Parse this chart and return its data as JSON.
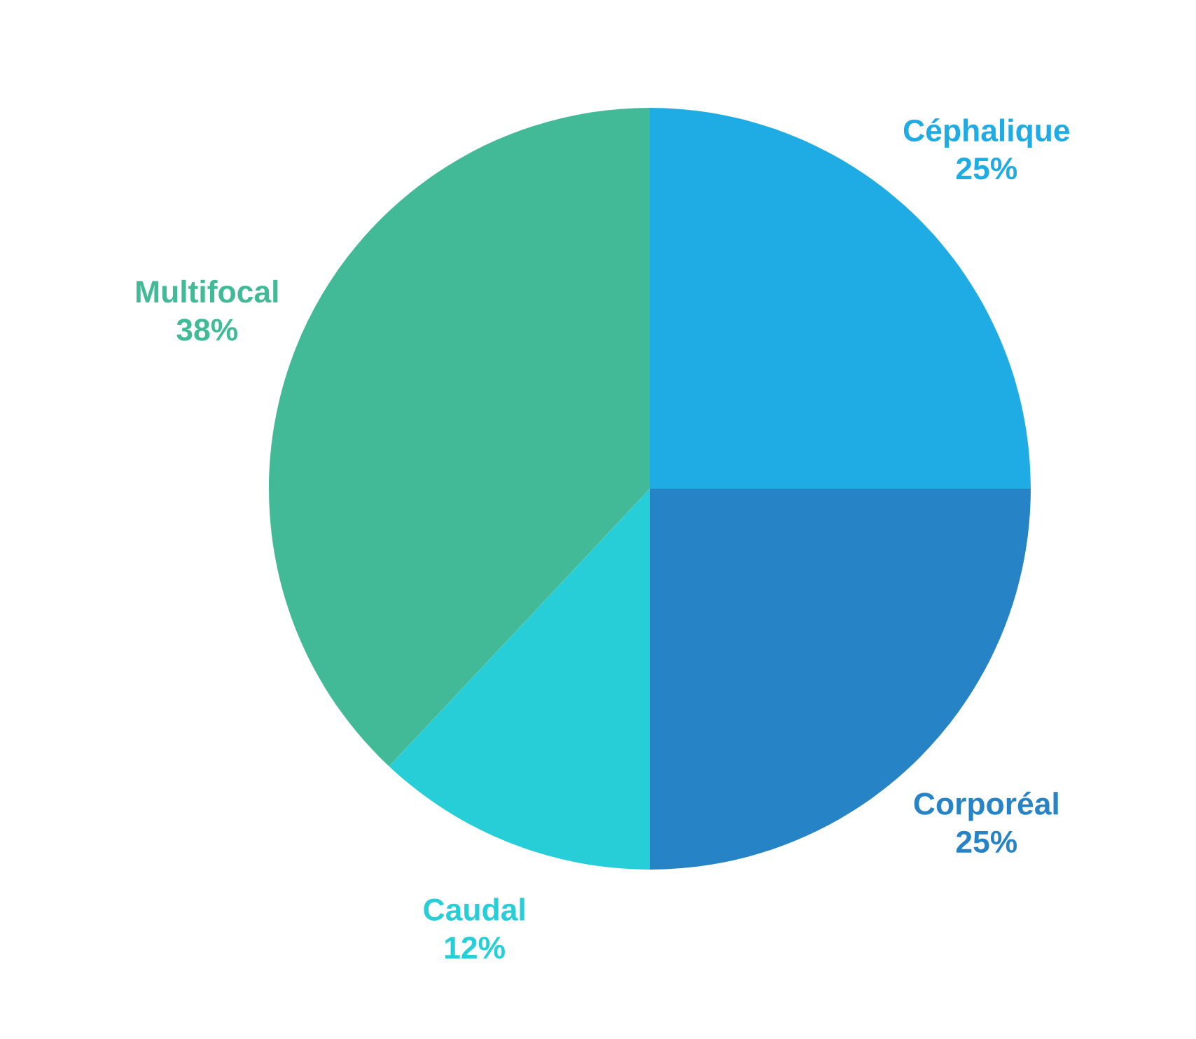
{
  "chart_data": {
    "type": "pie",
    "categories": [
      "Céphalique",
      "Corporéal",
      "Caudal",
      "Multifocal"
    ],
    "values": [
      25,
      25,
      12,
      38
    ],
    "colors": [
      "#1fabe3",
      "#2683c6",
      "#27ced7",
      "#42ba97"
    ],
    "value_labels": [
      "25%",
      "25%",
      "12%",
      "38%"
    ]
  }
}
